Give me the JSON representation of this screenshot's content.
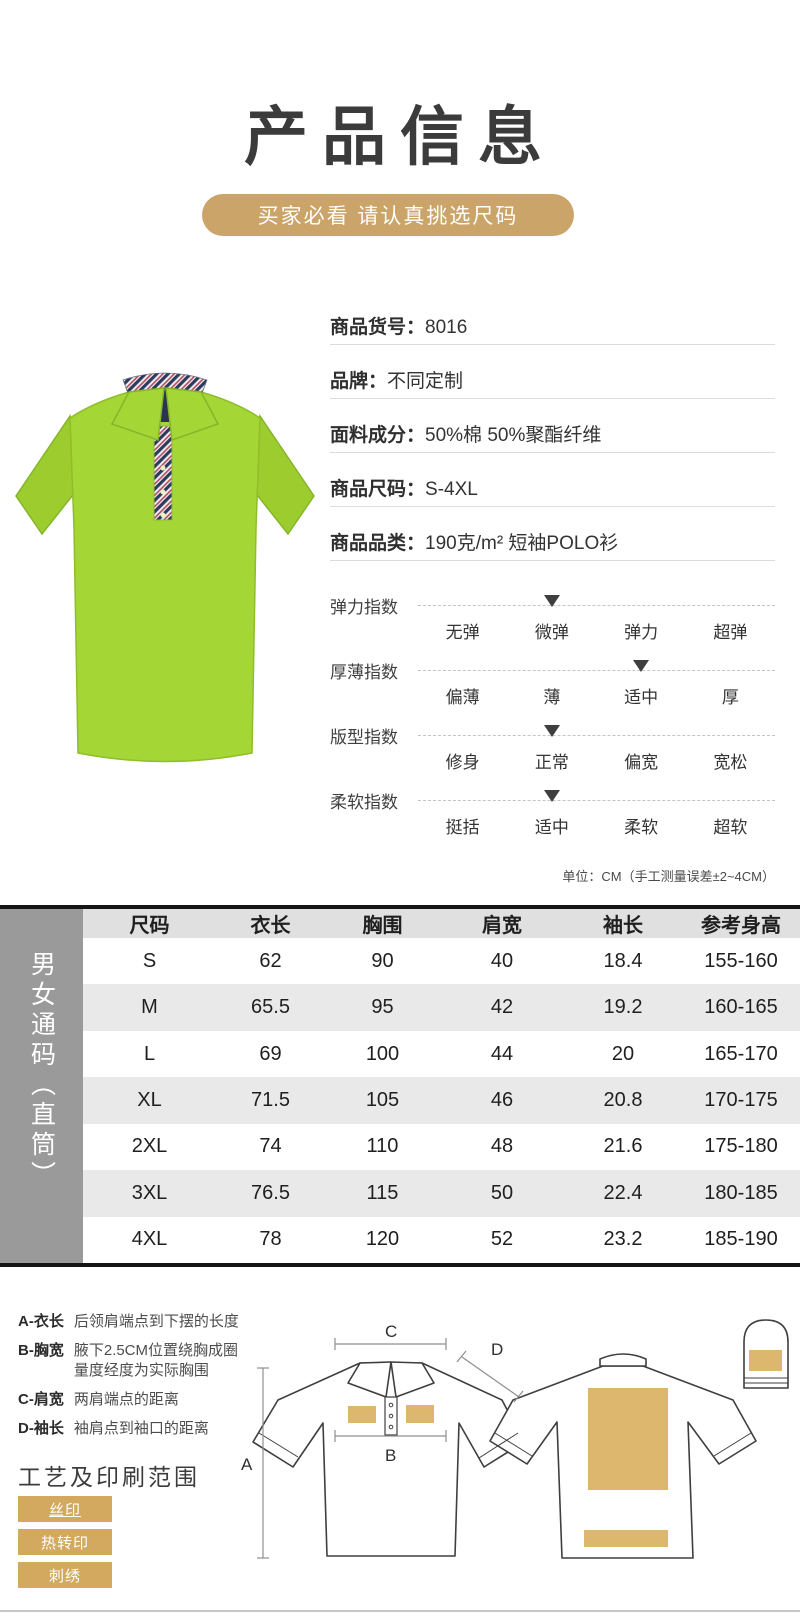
{
  "header": {
    "title": "产品信息",
    "banner": "买家必看 请认真挑选尺码"
  },
  "product": {
    "details": [
      {
        "label": "商品货号：",
        "value": "8016"
      },
      {
        "label": "品牌：",
        "value": "不同定制"
      },
      {
        "label": "面料成分：",
        "value": "50%棉  50%聚酯纤维"
      },
      {
        "label": "商品尺码：",
        "value": "S-4XL"
      },
      {
        "label": "商品品类：",
        "value": "190克/m²  短袖POLO衫"
      }
    ]
  },
  "scales": [
    {
      "label": "弹力指数",
      "options": [
        "无弹",
        "微弹",
        "弹力",
        "超弹"
      ],
      "active_index": 1
    },
    {
      "label": "厚薄指数",
      "options": [
        "偏薄",
        "薄",
        "适中",
        "厚"
      ],
      "active_index": 2
    },
    {
      "label": "版型指数",
      "options": [
        "修身",
        "正常",
        "偏宽",
        "宽松"
      ],
      "active_index": 1
    },
    {
      "label": "柔软指数",
      "options": [
        "挺括",
        "适中",
        "柔软",
        "超软"
      ],
      "active_index": 1
    }
  ],
  "size_table": {
    "unit_note": "单位：CM（手工测量误差±2~4CM）",
    "side_label": "男女通码（直筒）",
    "headers": [
      "尺码",
      "衣长",
      "胸围",
      "肩宽",
      "袖长",
      "参考身高"
    ],
    "rows": [
      [
        "S",
        "62",
        "90",
        "40",
        "18.4",
        "155-160"
      ],
      [
        "M",
        "65.5",
        "95",
        "42",
        "19.2",
        "160-165"
      ],
      [
        "L",
        "69",
        "100",
        "44",
        "20",
        "165-170"
      ],
      [
        "XL",
        "71.5",
        "105",
        "46",
        "20.8",
        "170-175"
      ],
      [
        "2XL",
        "74",
        "110",
        "48",
        "21.6",
        "175-180"
      ],
      [
        "3XL",
        "76.5",
        "115",
        "50",
        "22.4",
        "180-185"
      ],
      [
        "4XL",
        "78",
        "120",
        "52",
        "23.2",
        "185-190"
      ]
    ]
  },
  "measure_guide": {
    "items": [
      {
        "label": "A-衣长",
        "desc": "后领肩端点到下摆的长度"
      },
      {
        "label": "B-胸宽",
        "desc": "腋下2.5CM位置绕胸成圈",
        "desc2": "量度经度为实际胸围"
      },
      {
        "label": "C-肩宽",
        "desc": "两肩端点的距离"
      },
      {
        "label": "D-袖长",
        "desc": "袖肩点到袖口的距离"
      }
    ]
  },
  "printing": {
    "title": "工艺及印刷范围",
    "methods": [
      "丝印",
      "热转印",
      "刺绣"
    ]
  },
  "diagram": {
    "letters": {
      "a": "A",
      "b": "B",
      "c": "C",
      "d": "D"
    }
  },
  "colors": {
    "banner_gold": "#cba469",
    "button_gold": "#d2a95f",
    "print_area_gold": "#dcb76d",
    "shirt_green": "#a4d735",
    "table_line_black": "#151515",
    "sidebar_gray": "#9a9a9a"
  }
}
